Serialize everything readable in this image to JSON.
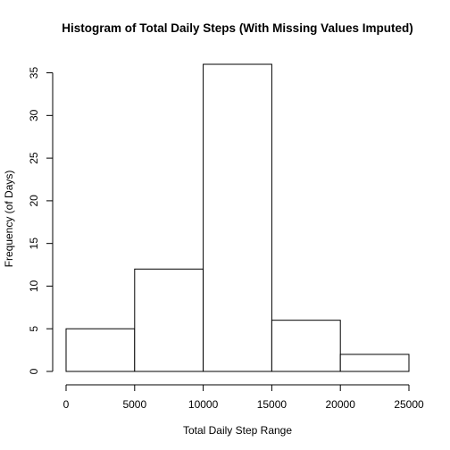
{
  "chart_data": {
    "type": "bar",
    "title": "Histogram of Total Daily Steps (With Missing Values Imputed)",
    "xlabel": "Total Daily Step Range",
    "ylabel": "Frequency (of Days)",
    "bins": [
      {
        "from": 0,
        "to": 5000,
        "count": 5
      },
      {
        "from": 5000,
        "to": 10000,
        "count": 12
      },
      {
        "from": 10000,
        "to": 15000,
        "count": 36
      },
      {
        "from": 15000,
        "to": 20000,
        "count": 6
      },
      {
        "from": 20000,
        "to": 25000,
        "count": 2
      }
    ],
    "xlim": [
      0,
      25000
    ],
    "ylim": [
      0,
      36
    ],
    "xticks": [
      0,
      5000,
      10000,
      15000,
      20000,
      25000
    ],
    "yticks": [
      0,
      5,
      10,
      15,
      20,
      25,
      30,
      35
    ],
    "grid": false,
    "colors": {
      "bar_fill": "#ffffff",
      "bar_stroke": "#000000"
    }
  }
}
